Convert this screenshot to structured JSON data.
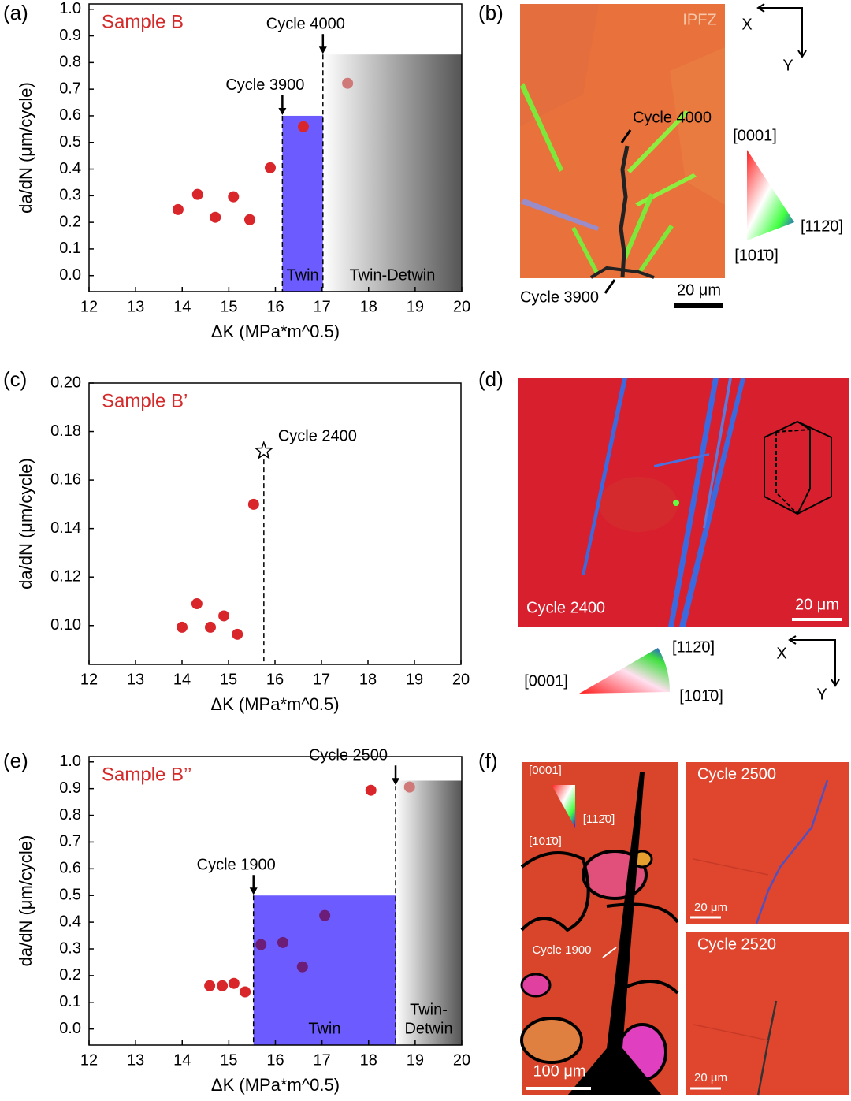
{
  "panel_labels": [
    "(a)",
    "(b)",
    "(c)",
    "(d)",
    "(e)",
    "(f)"
  ],
  "chart_data": [
    {
      "type": "scatter",
      "annotation": "Sample B",
      "annotation_color": "#d42a2a",
      "xlabel": "ΔK (MPa*m^0.5)",
      "ylabel": "da/dN (μm/cycle)",
      "xlim": [
        12,
        20
      ],
      "xticks": [
        12,
        13,
        14,
        15,
        16,
        17,
        18,
        19,
        20
      ],
      "ylim": [
        -0.06,
        1.02
      ],
      "yticks": [
        {
          "value": 0,
          "label": "0.0"
        },
        0.1,
        0.2,
        0.3,
        0.4,
        0.5,
        0.6,
        0.7,
        0.8,
        0.9,
        {
          "value": 1,
          "label": "1.0"
        }
      ],
      "series": [
        {
          "color": "#d8262b",
          "x": [
            13.91,
            14.33,
            14.71,
            15.1,
            15.45,
            15.89,
            16.6
          ],
          "values": [
            0.248,
            0.305,
            0.219,
            0.296,
            0.21,
            0.405,
            0.559
          ]
        },
        {
          "color": "#cf7a78",
          "x": [
            17.55
          ],
          "values": [
            0.722
          ]
        }
      ],
      "regions": [
        {
          "x": [
            16.15,
            17.02
          ],
          "top": 0.6,
          "color": "#6c5cff",
          "label": "Twin"
        },
        {
          "x": [
            17.02,
            20
          ],
          "top": 0.83,
          "gradient": [
            "#ffffff",
            "#555555"
          ],
          "label": "Twin-Detwin"
        }
      ],
      "markers": [
        {
          "x": 16.15,
          "arrow_y": 0.6,
          "label": "Cycle 3900"
        },
        {
          "x": 17.02,
          "arrow_y": 0.83,
          "label": "Cycle 4000"
        }
      ]
    },
    {
      "type": "scatter",
      "annotation": "Sample B’",
      "annotation_color": "#d42a2a",
      "xlabel": "ΔK (MPa*m^0.5)",
      "ylabel": "da/dN (μm/cycle)",
      "xlim": [
        12,
        20
      ],
      "xticks": [
        12,
        13,
        14,
        15,
        16,
        17,
        18,
        19,
        20
      ],
      "ylim": [
        0.084,
        0.2
      ],
      "yticks": [
        {
          "value": 0.1,
          "label": "0.10"
        },
        0.12,
        0.14,
        0.16,
        0.18,
        {
          "value": 0.2,
          "label": "0.20"
        }
      ],
      "series": [
        {
          "color": "#d8262b",
          "x": [
            14.0,
            14.32,
            14.61,
            14.9,
            15.19,
            15.54
          ],
          "values": [
            0.0993,
            0.109,
            0.0993,
            0.104,
            0.0964,
            0.15
          ]
        }
      ],
      "regions": [],
      "markers": [
        {
          "x": 15.76,
          "y": 0.172,
          "symbol": "star",
          "label": "Cycle 2400"
        }
      ]
    },
    {
      "type": "scatter",
      "annotation": "Sample B’’",
      "annotation_color": "#d42a2a",
      "xlabel": "ΔK (MPa*m^0.5)",
      "ylabel": "da/dN (μm/cycle)",
      "xlim": [
        12,
        20
      ],
      "xticks": [
        12,
        13,
        14,
        15,
        16,
        17,
        18,
        19,
        20
      ],
      "ylim": [
        -0.06,
        1.02
      ],
      "yticks": [
        {
          "value": 0,
          "label": "0.0"
        },
        0.1,
        0.2,
        0.3,
        0.4,
        0.5,
        0.6,
        0.7,
        0.8,
        0.9,
        {
          "value": 1,
          "label": "1.0"
        }
      ],
      "series": [
        {
          "color": "#d8262b",
          "x": [
            14.59,
            14.86,
            15.11,
            15.35,
            18.05
          ],
          "values": [
            0.162,
            0.162,
            0.171,
            0.139,
            0.894
          ]
        },
        {
          "color": "#6b1d78",
          "x": [
            15.69,
            16.16,
            16.58,
            17.06
          ],
          "values": [
            0.316,
            0.324,
            0.233,
            0.425
          ]
        },
        {
          "color": "#cf7a78",
          "x": [
            18.88
          ],
          "values": [
            0.906
          ]
        }
      ],
      "regions": [
        {
          "x": [
            15.53,
            18.58
          ],
          "top": 0.5,
          "color": "#6c5cff",
          "label": "Twin"
        },
        {
          "x": [
            18.58,
            20
          ],
          "top": 0.93,
          "gradient": [
            "#ffffff",
            "#555555"
          ],
          "label": [
            "Twin-",
            "Detwin"
          ]
        }
      ],
      "markers": [
        {
          "x": 15.53,
          "arrow_y": 0.5,
          "label": "Cycle 1900"
        },
        {
          "x": 18.58,
          "arrow_y": 0.91,
          "label": "Cycle 2500"
        }
      ]
    }
  ],
  "images": {
    "b": {
      "label": "IPFZ",
      "cycle_4000": "Cycle 4000",
      "cycle_3900": "Cycle 3900",
      "scale": "20 μm",
      "x": "X",
      "y": "Y",
      "key": [
        "[0001]",
        "[112̄0]",
        "[101̄0]"
      ]
    },
    "d": {
      "cycle": "Cycle 2400",
      "scale": "20 μm",
      "x": "X",
      "y": "Y",
      "key": [
        "[112̄0]",
        "[0001]",
        "[101̄0]"
      ]
    },
    "f": {
      "key": [
        "[0001]",
        "[112̄0]",
        "[101̄0]"
      ],
      "cycle_1900": "Cycle 1900",
      "scale_left": "100 μm",
      "top_right": "Cycle 2500",
      "scale_top_right": "20 μm",
      "bottom_right": "Cycle 2520",
      "scale_bottom_right": "20 μm"
    }
  }
}
